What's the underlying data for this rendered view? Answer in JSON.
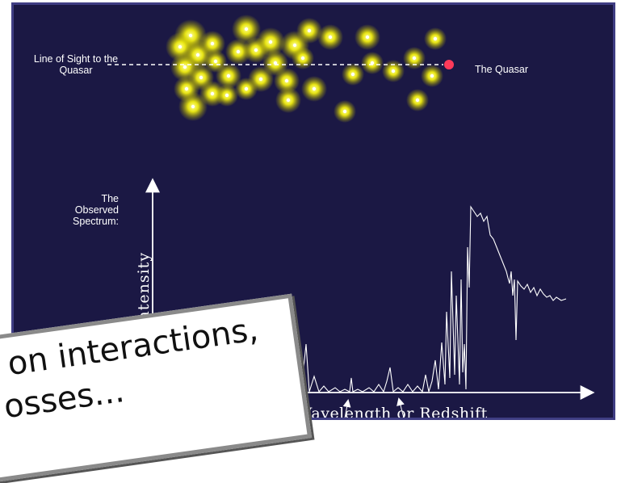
{
  "labels": {
    "line_of_sight": "Line of Sight to the Quasar",
    "quasar": "The Quasar",
    "observed_spectrum": "The Observed Spectrum:",
    "y_axis": "Intensity",
    "x_axis": "Wavelength or Redshift"
  },
  "overlay_card": {
    "line1": "on interactions,",
    "line2": "osses..."
  },
  "colors": {
    "background": "#1b1844",
    "frame": "#3f3d83",
    "galaxy_glow": "#f4f20a",
    "quasar": "#ff3a5a",
    "foreground": "#ffffff"
  }
}
